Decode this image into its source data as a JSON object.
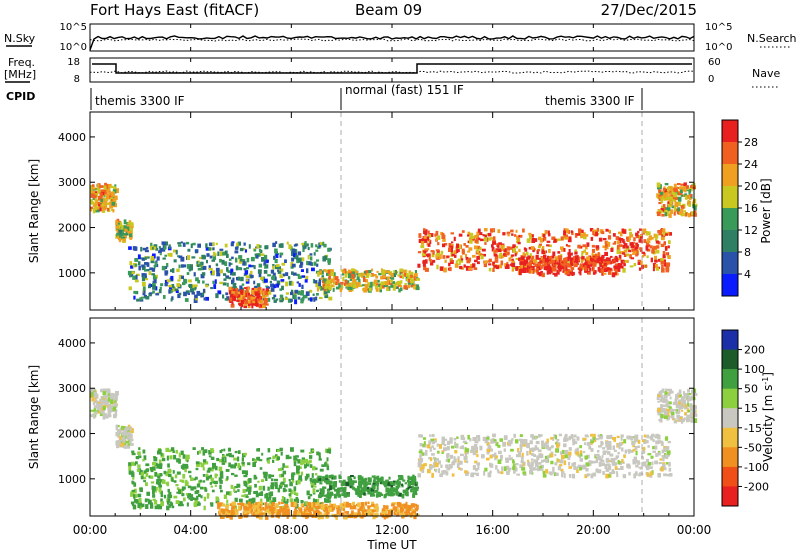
{
  "header": {
    "station": "Fort Hays East (fitACF)",
    "beam": "Beam 09",
    "date": "27/Dec/2015"
  },
  "noise_panel": {
    "left_label": "N.Sky",
    "right_label": "N.Search",
    "left_ticks": [
      "10^5",
      "10^0"
    ],
    "right_ticks": [
      "10^5",
      "10^0"
    ]
  },
  "freq_panel": {
    "left_label_1": "Freq.",
    "left_label_2": "[MHz]",
    "right_label": "Nave",
    "left_ticks": [
      "18",
      "8"
    ],
    "right_ticks": [
      "60",
      "0"
    ]
  },
  "cpid_panel": {
    "label": "CPID",
    "segments": [
      {
        "name": "themis 3300 IF",
        "start_hour": 0,
        "end_hour": 10
      },
      {
        "name": "normal (fast) 151 IF",
        "start_hour": 10,
        "end_hour": 22
      },
      {
        "name": "themis 3300 IF",
        "start_hour": 22,
        "end_hour": 24
      }
    ]
  },
  "colors": {
    "power_scale": [
      "#0a1cff",
      "#2a52a8",
      "#2f7f64",
      "#3a9a5a",
      "#c8c820",
      "#f0a020",
      "#f06020",
      "#e82020"
    ],
    "velocity_scale": [
      "#1a2fa8",
      "#1d5c2a",
      "#40a040",
      "#8cd040",
      "#c8c8c0",
      "#f0c040",
      "#f09020",
      "#f05018",
      "#e82020"
    ]
  },
  "chart_data": [
    {
      "type": "heatmap",
      "title": "",
      "xlabel": "",
      "ylabel": "Slant Range [km]",
      "xlim": [
        "00:00",
        "24:00"
      ],
      "ylim": [
        180,
        4550
      ],
      "x_ticks": [
        "00:00",
        "04:00",
        "08:00",
        "12:00",
        "16:00",
        "20:00",
        "00:00"
      ],
      "y_ticks": [
        1000,
        2000,
        3000,
        4000
      ],
      "colorbar": {
        "label": "Power [dB]",
        "ticks": [
          4,
          8,
          12,
          16,
          20,
          24,
          28
        ],
        "range": [
          0,
          30
        ]
      },
      "features": [
        {
          "hours": [
            0.0,
            1.0
          ],
          "range_km": [
            2400,
            3000
          ],
          "power_db": 20
        },
        {
          "hours": [
            1.0,
            1.6
          ],
          "range_km": [
            1750,
            2200
          ],
          "power_db": 16
        },
        {
          "hours": [
            1.5,
            9.5
          ],
          "range_km": [
            400,
            1700
          ],
          "power_db": 10
        },
        {
          "hours": [
            5.5,
            7.0
          ],
          "range_km": [
            300,
            700
          ],
          "power_db": 26
        },
        {
          "hours": [
            9.0,
            13.0
          ],
          "range_km": [
            650,
            1100
          ],
          "power_db": 18
        },
        {
          "hours": [
            13.0,
            23.0
          ],
          "range_km": [
            1100,
            2000
          ],
          "power_db": 24
        },
        {
          "hours": [
            17.0,
            21.0
          ],
          "range_km": [
            1000,
            1400
          ],
          "power_db": 28
        },
        {
          "hours": [
            22.5,
            24.0
          ],
          "range_km": [
            2300,
            3000
          ],
          "power_db": 20
        }
      ]
    },
    {
      "type": "heatmap",
      "title": "",
      "xlabel": "Time UT",
      "ylabel": "Slant Range [km]",
      "xlim": [
        "00:00",
        "24:00"
      ],
      "ylim": [
        180,
        4550
      ],
      "x_ticks": [
        "00:00",
        "04:00",
        "08:00",
        "12:00",
        "16:00",
        "20:00",
        "00:00"
      ],
      "y_ticks": [
        1000,
        2000,
        3000,
        4000
      ],
      "colorbar": {
        "label": "Velocity [m s^-1]",
        "ticks": [
          200,
          100,
          50,
          15,
          -15,
          -50,
          -100,
          -200
        ],
        "range": [
          -250,
          250
        ]
      },
      "features": [
        {
          "hours": [
            0.0,
            1.0
          ],
          "range_km": [
            2400,
            3000
          ],
          "velocity": 0
        },
        {
          "hours": [
            1.0,
            1.6
          ],
          "range_km": [
            1750,
            2200
          ],
          "velocity": 0
        },
        {
          "hours": [
            1.5,
            9.5
          ],
          "range_km": [
            400,
            1700
          ],
          "velocity": 40
        },
        {
          "hours": [
            9.0,
            13.0
          ],
          "range_km": [
            650,
            1100
          ],
          "velocity": 60
        },
        {
          "hours": [
            13.0,
            23.0
          ],
          "range_km": [
            1100,
            2000
          ],
          "velocity": 0
        },
        {
          "hours": [
            5.0,
            13.0
          ],
          "range_km": [
            200,
            500
          ],
          "velocity": -40
        },
        {
          "hours": [
            22.5,
            24.0
          ],
          "range_km": [
            2300,
            3000
          ],
          "velocity": 0
        }
      ]
    }
  ]
}
